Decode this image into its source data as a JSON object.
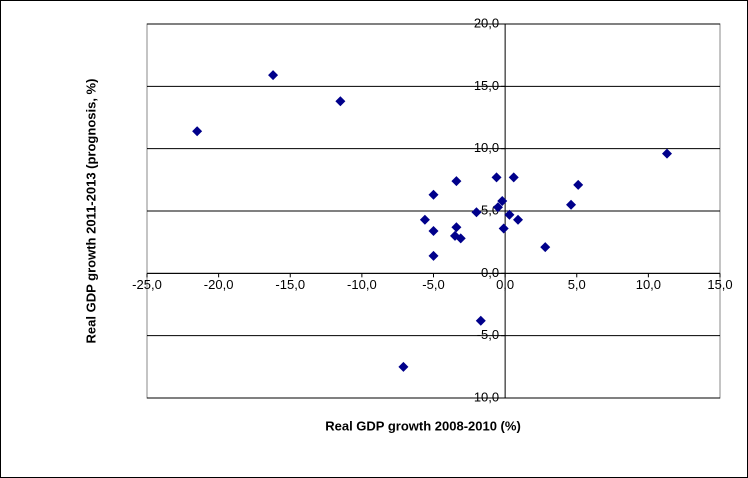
{
  "chart_data": {
    "type": "scatter",
    "x_label": "Real GDP growth 2008-2010 (%)",
    "y_label": "Real GDP growth 2011-2013 (prognosis, %)",
    "x": [
      -21.5,
      -16.2,
      -11.5,
      11.3,
      5.1,
      4.6,
      2.8,
      0.6,
      -0.6,
      -3.4,
      -5.0,
      -2.0,
      -0.2,
      -0.5,
      0.3,
      0.9,
      -0.1,
      -3.4,
      -5.6,
      -5.0,
      -3.5,
      -3.1,
      -5.0,
      -1.7,
      -7.1
    ],
    "values": [
      11.4,
      15.9,
      13.8,
      9.6,
      7.1,
      5.5,
      2.1,
      7.7,
      7.7,
      7.4,
      6.3,
      4.9,
      5.8,
      5.3,
      4.7,
      4.3,
      3.6,
      3.7,
      4.3,
      3.4,
      3.0,
      2.8,
      1.4,
      -3.8,
      -7.5
    ],
    "color": "#00008b",
    "xlim": [
      -25,
      15
    ],
    "ylim": [
      -10,
      20
    ],
    "xticks": [
      {
        "value": -25,
        "label": "-25,0"
      },
      {
        "value": -20,
        "label": "-20,0"
      },
      {
        "value": -15,
        "label": "-15,0"
      },
      {
        "value": -10,
        "label": "-10,0"
      },
      {
        "value": -5,
        "label": "-5,0"
      },
      {
        "value": 0,
        "label": "0,0"
      },
      {
        "value": 5,
        "label": "5,0"
      },
      {
        "value": 10,
        "label": "10,0"
      },
      {
        "value": 15,
        "label": "15,0"
      }
    ],
    "yticks": [
      {
        "value": -10,
        "label": "-10,0"
      },
      {
        "value": -5,
        "label": "-5,0"
      },
      {
        "value": 0,
        "label": "0,0"
      },
      {
        "value": 5,
        "label": "5,0"
      },
      {
        "value": 10,
        "label": "10,0"
      },
      {
        "value": 15,
        "label": "15,0"
      },
      {
        "value": 20,
        "label": "20,0"
      }
    ],
    "grid": true
  }
}
